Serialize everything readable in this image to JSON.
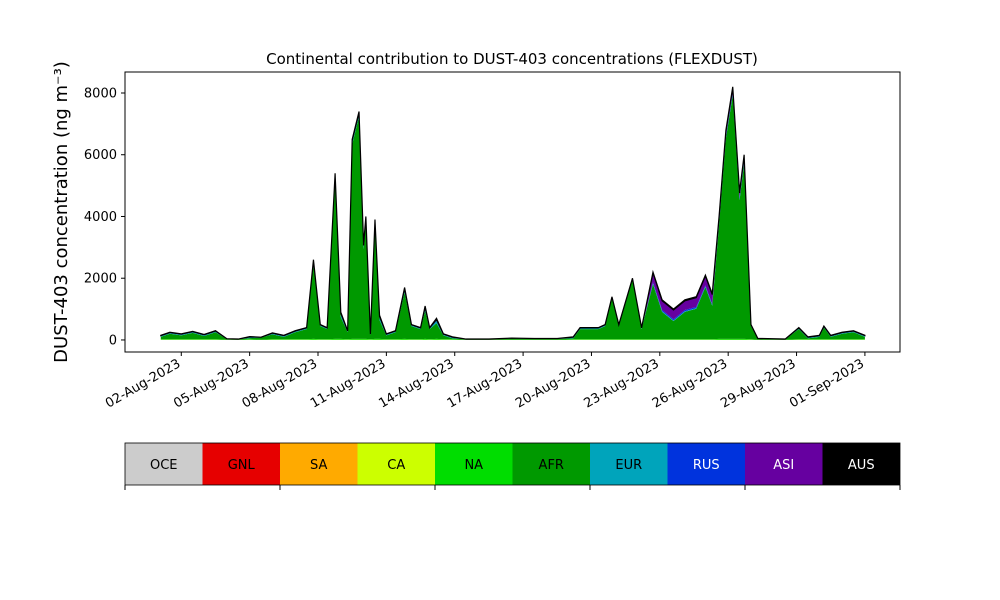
{
  "chart_data": {
    "type": "stacked_area",
    "title": "Continental contribution to DUST-403 concentrations (FLEXDUST)",
    "y_label": "DUST-403 concentration (ng m⁻³)",
    "x": [
      1.1,
      1.5,
      2.0,
      2.5,
      3.0,
      3.5,
      4.0,
      4.5,
      5.0,
      5.5,
      6.0,
      6.5,
      7.0,
      7.5,
      7.8,
      8.1,
      8.4,
      8.75,
      9.0,
      9.3,
      9.5,
      9.8,
      10.0,
      10.1,
      10.3,
      10.5,
      10.7,
      11.0,
      11.4,
      11.8,
      12.1,
      12.5,
      12.7,
      12.9,
      13.2,
      13.5,
      13.9,
      14.5,
      15.5,
      16.5,
      17.5,
      18.5,
      19.2,
      19.5,
      20.3,
      20.6,
      20.9,
      21.2,
      21.8,
      22.2,
      22.7,
      23.1,
      23.6,
      24.1,
      24.6,
      25.0,
      25.3,
      25.6,
      25.9,
      26.2,
      26.5,
      26.7,
      27.0,
      27.3,
      28.5,
      29.1,
      29.5,
      30.0,
      30.2,
      30.5,
      31.0,
      31.5,
      32.0
    ],
    "xlim": [
      -0.47,
      33.54
    ],
    "xticks": [
      {
        "value": 2,
        "label": "02-Aug-2023"
      },
      {
        "value": 5,
        "label": "05-Aug-2023"
      },
      {
        "value": 8,
        "label": "08-Aug-2023"
      },
      {
        "value": 11,
        "label": "11-Aug-2023"
      },
      {
        "value": 14,
        "label": "14-Aug-2023"
      },
      {
        "value": 17,
        "label": "17-Aug-2023"
      },
      {
        "value": 20,
        "label": "20-Aug-2023"
      },
      {
        "value": 23,
        "label": "23-Aug-2023"
      },
      {
        "value": 26,
        "label": "26-Aug-2023"
      },
      {
        "value": 29,
        "label": "29-Aug-2023"
      },
      {
        "value": 32,
        "label": "01-Sep-2023"
      }
    ],
    "ylim": [
      -390,
      8680
    ],
    "yticks": [
      0,
      2000,
      4000,
      6000,
      8000
    ],
    "series": [
      {
        "name": "OCE",
        "color": "#cccccc",
        "values": [
          0,
          0,
          0,
          0,
          0,
          0,
          0,
          0,
          0,
          0,
          0,
          0,
          0,
          0,
          0,
          0,
          0,
          0,
          0,
          0,
          0,
          0,
          0,
          0,
          0,
          0,
          0,
          0,
          0,
          0,
          0,
          0,
          0,
          0,
          0,
          0,
          0,
          0,
          0,
          0,
          0,
          0,
          0,
          0,
          0,
          0,
          0,
          0,
          0,
          0,
          0,
          0,
          0,
          0,
          0,
          0,
          0,
          0,
          0,
          0,
          0,
          0,
          0,
          0,
          0,
          0,
          0,
          0,
          0,
          0,
          0,
          0,
          0
        ]
      },
      {
        "name": "GNL",
        "color": "#e60000",
        "values": [
          0,
          0,
          0,
          0,
          0,
          0,
          0,
          0,
          0,
          0,
          0,
          0,
          0,
          0,
          0,
          0,
          0,
          0,
          0,
          0,
          0,
          0,
          0,
          0,
          0,
          0,
          0,
          0,
          0,
          0,
          0,
          0,
          0,
          0,
          0,
          0,
          0,
          0,
          0,
          0,
          0,
          0,
          0,
          0,
          0,
          0,
          0,
          0,
          0,
          0,
          0,
          0,
          0,
          0,
          0,
          0,
          0,
          0,
          0,
          0,
          0,
          0,
          0,
          0,
          0,
          0,
          0,
          0,
          0,
          0,
          0,
          0,
          0
        ]
      },
      {
        "name": "SA",
        "color": "#ffaa00",
        "values": [
          0,
          0,
          0,
          0,
          0,
          0,
          0,
          0,
          0,
          0,
          0,
          0,
          0,
          0,
          0,
          0,
          0,
          0,
          0,
          0,
          0,
          0,
          0,
          0,
          0,
          0,
          0,
          0,
          0,
          0,
          0,
          0,
          0,
          0,
          0,
          0,
          0,
          0,
          0,
          0,
          0,
          0,
          0,
          0,
          0,
          0,
          0,
          0,
          0,
          0,
          0,
          0,
          0,
          0,
          0,
          0,
          0,
          0,
          0,
          0,
          0,
          0,
          0,
          0,
          0,
          0,
          0,
          0,
          0,
          0,
          0,
          0,
          0
        ]
      },
      {
        "name": "CA",
        "color": "#ccff00",
        "values": [
          5,
          5,
          5,
          5,
          5,
          5,
          2,
          2,
          5,
          2,
          5,
          5,
          5,
          5,
          5,
          5,
          5,
          5,
          5,
          5,
          5,
          5,
          5,
          5,
          5,
          5,
          5,
          5,
          5,
          5,
          5,
          5,
          5,
          5,
          5,
          5,
          5,
          2,
          2,
          2,
          2,
          2,
          5,
          5,
          5,
          5,
          5,
          5,
          5,
          5,
          5,
          5,
          5,
          5,
          5,
          5,
          5,
          5,
          5,
          5,
          5,
          5,
          5,
          2,
          2,
          5,
          5,
          5,
          5,
          5,
          5,
          5,
          5
        ]
      },
      {
        "name": "NA",
        "color": "#00dd00",
        "values": [
          20,
          20,
          20,
          20,
          20,
          20,
          5,
          5,
          20,
          5,
          20,
          20,
          20,
          20,
          30,
          20,
          20,
          30,
          30,
          20,
          30,
          30,
          30,
          30,
          20,
          30,
          30,
          20,
          20,
          30,
          20,
          20,
          30,
          20,
          30,
          20,
          20,
          5,
          5,
          5,
          5,
          5,
          20,
          20,
          20,
          20,
          20,
          20,
          20,
          20,
          20,
          20,
          20,
          20,
          20,
          20,
          20,
          30,
          30,
          30,
          30,
          30,
          20,
          5,
          5,
          20,
          20,
          20,
          20,
          20,
          20,
          20,
          20
        ]
      },
      {
        "name": "AFR",
        "color": "#009900",
        "values": [
          75,
          175,
          125,
          205,
          105,
          225,
          20,
          10,
          35,
          70,
          155,
          75,
          225,
          325,
          2405,
          425,
          325,
          5205,
          705,
          225,
          6305,
          7205,
          2905,
          3805,
          125,
          3705,
          605,
          125,
          225,
          1505,
          425,
          325,
          905,
          325,
          505,
          125,
          25,
          10,
          10,
          40,
          30,
          30,
          25,
          325,
          325,
          425,
          1325,
          425,
          1925,
          325,
          1785,
          885,
          585,
          885,
          985,
          1685,
          1085,
          3695,
          6495,
          7895,
          4495,
          5695,
          425,
          30,
          10,
          325,
          25,
          75,
          375,
          75,
          175,
          225,
          75
        ]
      },
      {
        "name": "EUR",
        "color": "#00a4bb",
        "values": [
          20,
          20,
          20,
          20,
          20,
          20,
          5,
          5,
          20,
          5,
          20,
          20,
          20,
          20,
          80,
          20,
          20,
          80,
          80,
          20,
          80,
          80,
          80,
          80,
          20,
          80,
          80,
          20,
          20,
          80,
          20,
          20,
          80,
          20,
          80,
          20,
          20,
          5,
          5,
          5,
          5,
          5,
          20,
          20,
          20,
          20,
          20,
          20,
          20,
          20,
          20,
          20,
          20,
          20,
          20,
          20,
          20,
          20,
          20,
          20,
          20,
          20,
          20,
          5,
          5,
          20,
          20,
          20,
          20,
          20,
          20,
          20,
          20
        ]
      },
      {
        "name": "RUS",
        "color": "#0033dd",
        "values": [
          10,
          10,
          10,
          10,
          10,
          10,
          3,
          3,
          10,
          3,
          10,
          10,
          10,
          10,
          20,
          10,
          10,
          20,
          20,
          10,
          20,
          20,
          20,
          20,
          10,
          20,
          20,
          10,
          10,
          20,
          10,
          10,
          20,
          10,
          20,
          10,
          10,
          3,
          3,
          3,
          3,
          3,
          10,
          10,
          10,
          10,
          10,
          10,
          10,
          10,
          40,
          40,
          40,
          40,
          40,
          40,
          40,
          60,
          60,
          60,
          60,
          60,
          10,
          3,
          3,
          10,
          10,
          10,
          10,
          10,
          10,
          10,
          10
        ]
      },
      {
        "name": "ASI",
        "color": "#6600a0",
        "values": [
          10,
          10,
          10,
          10,
          10,
          10,
          3,
          3,
          10,
          3,
          10,
          10,
          10,
          10,
          20,
          10,
          10,
          20,
          20,
          10,
          20,
          20,
          20,
          20,
          10,
          20,
          20,
          10,
          10,
          20,
          10,
          10,
          20,
          10,
          20,
          10,
          10,
          3,
          3,
          3,
          3,
          3,
          10,
          10,
          10,
          10,
          10,
          10,
          10,
          10,
          300,
          300,
          300,
          300,
          300,
          300,
          300,
          150,
          150,
          150,
          150,
          150,
          10,
          3,
          3,
          10,
          10,
          10,
          10,
          10,
          10,
          10,
          10
        ]
      },
      {
        "name": "AUS",
        "color": "#000000",
        "values": [
          10,
          10,
          10,
          10,
          10,
          10,
          2,
          2,
          10,
          2,
          10,
          10,
          10,
          10,
          40,
          10,
          10,
          40,
          40,
          10,
          40,
          40,
          40,
          40,
          10,
          40,
          40,
          10,
          10,
          40,
          10,
          10,
          40,
          10,
          40,
          10,
          10,
          2,
          2,
          2,
          2,
          2,
          10,
          10,
          10,
          10,
          10,
          10,
          10,
          10,
          30,
          30,
          30,
          30,
          30,
          30,
          30,
          40,
          40,
          40,
          40,
          40,
          10,
          2,
          2,
          10,
          10,
          10,
          10,
          10,
          10,
          10,
          10
        ]
      }
    ]
  }
}
